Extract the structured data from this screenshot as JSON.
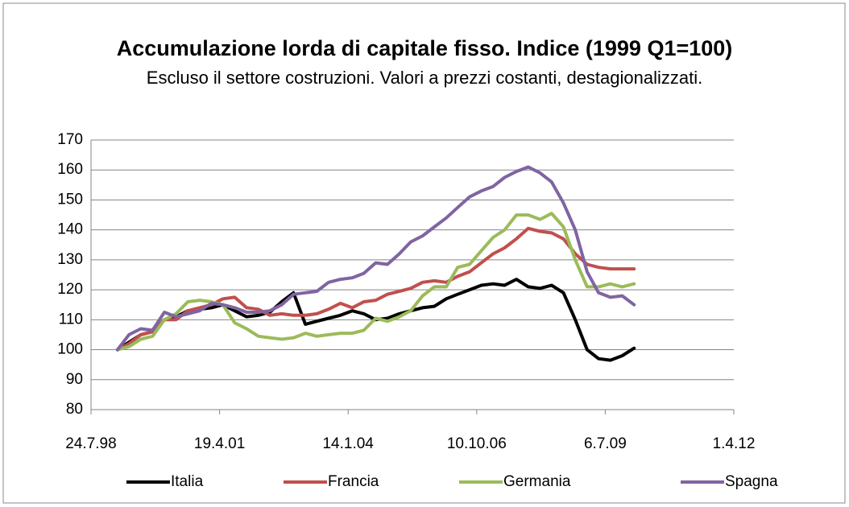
{
  "chart_data": {
    "type": "line",
    "title": "Accumulazione lorda di capitale fisso. Indice (1999 Q1=100)",
    "subtitle": "Escluso il settore costruzioni. Valori a prezzi costanti, destagionalizzati.",
    "x": [
      "1999-02-15",
      "1999-05-15",
      "1999-08-15",
      "1999-11-15",
      "2000-02-15",
      "2000-05-15",
      "2000-08-15",
      "2000-11-15",
      "2001-02-15",
      "2001-05-15",
      "2001-08-15",
      "2001-11-15",
      "2002-02-15",
      "2002-05-15",
      "2002-08-15",
      "2002-11-15",
      "2003-02-15",
      "2003-05-15",
      "2003-08-15",
      "2003-11-15",
      "2004-02-15",
      "2004-05-15",
      "2004-08-15",
      "2004-11-15",
      "2005-02-15",
      "2005-05-15",
      "2005-08-15",
      "2005-11-15",
      "2006-02-15",
      "2006-05-15",
      "2006-08-15",
      "2006-11-15",
      "2007-02-15",
      "2007-05-15",
      "2007-08-15",
      "2007-11-15",
      "2008-02-15",
      "2008-05-15",
      "2008-08-15",
      "2008-11-15",
      "2009-02-15",
      "2009-05-15",
      "2009-08-15",
      "2009-11-15",
      "2010-02-15"
    ],
    "series": [
      {
        "name": "Italia",
        "color": "#000000",
        "values": [
          100,
          102.5,
          105,
          106,
          110,
          111,
          113,
          113.5,
          114,
          115,
          113,
          111,
          111.5,
          112.5,
          116,
          119,
          108.5,
          109.5,
          110.5,
          111.5,
          113,
          112,
          110,
          110.5,
          112,
          113,
          114,
          114.5,
          117,
          118.5,
          120,
          121.5,
          122,
          121.5,
          123.5,
          121,
          120.5,
          121.5,
          119,
          110,
          100,
          97,
          96.5,
          98,
          100.5
        ]
      },
      {
        "name": "Francia",
        "color": "#c0504d",
        "values": [
          100,
          102,
          105,
          106,
          110,
          110,
          113,
          114,
          115,
          117,
          117.5,
          114,
          113.5,
          111.5,
          112,
          111.5,
          111.5,
          112,
          113.5,
          115.5,
          114,
          116,
          116.5,
          118.5,
          119.5,
          120.5,
          122.5,
          123,
          122.5,
          124.5,
          126,
          129,
          132,
          134,
          137,
          140.5,
          139.5,
          139,
          137,
          132,
          128.5,
          127.5,
          127,
          127,
          127
        ]
      },
      {
        "name": "Germania",
        "color": "#9bbb59",
        "values": [
          100,
          101,
          103.5,
          104.5,
          110,
          112,
          116,
          116.5,
          116,
          115,
          109,
          107,
          104.5,
          104,
          103.5,
          104,
          105.5,
          104.5,
          105,
          105.5,
          105.5,
          106.5,
          110.5,
          109.5,
          111,
          113,
          118,
          121,
          121,
          127.5,
          128.5,
          133,
          137.5,
          140,
          145,
          145,
          143.5,
          145.5,
          141,
          130,
          121,
          121,
          122,
          121,
          122
        ]
      },
      {
        "name": "Spagna",
        "color": "#8064a2",
        "values": [
          100,
          105,
          107,
          106.5,
          112.5,
          111,
          112,
          113,
          115.5,
          115,
          114,
          112.5,
          112.5,
          113,
          115,
          118.5,
          119,
          119.5,
          122.5,
          123.5,
          124,
          125.5,
          129,
          128.5,
          132,
          136,
          138,
          141,
          144,
          147.5,
          151,
          153,
          154.5,
          157.5,
          159.5,
          161,
          159,
          156,
          149,
          140,
          126,
          119,
          117.5,
          118,
          115
        ]
      }
    ],
    "xlim": [
      "1998-07-24",
      "2012-04-01"
    ],
    "xticks": [
      {
        "value": "1998-07-24",
        "label": "24.7.98"
      },
      {
        "value": "2001-04-19",
        "label": "19.4.01"
      },
      {
        "value": "2004-01-14",
        "label": "14.1.04"
      },
      {
        "value": "2006-10-10",
        "label": "10.10.06"
      },
      {
        "value": "2009-07-06",
        "label": "6.7.09"
      },
      {
        "value": "2012-04-01",
        "label": "1.4.12"
      }
    ],
    "ylim": [
      80,
      170
    ],
    "yticks": [
      80,
      90,
      100,
      110,
      120,
      130,
      140,
      150,
      160,
      170
    ],
    "grid": true,
    "legend": "bottom"
  }
}
